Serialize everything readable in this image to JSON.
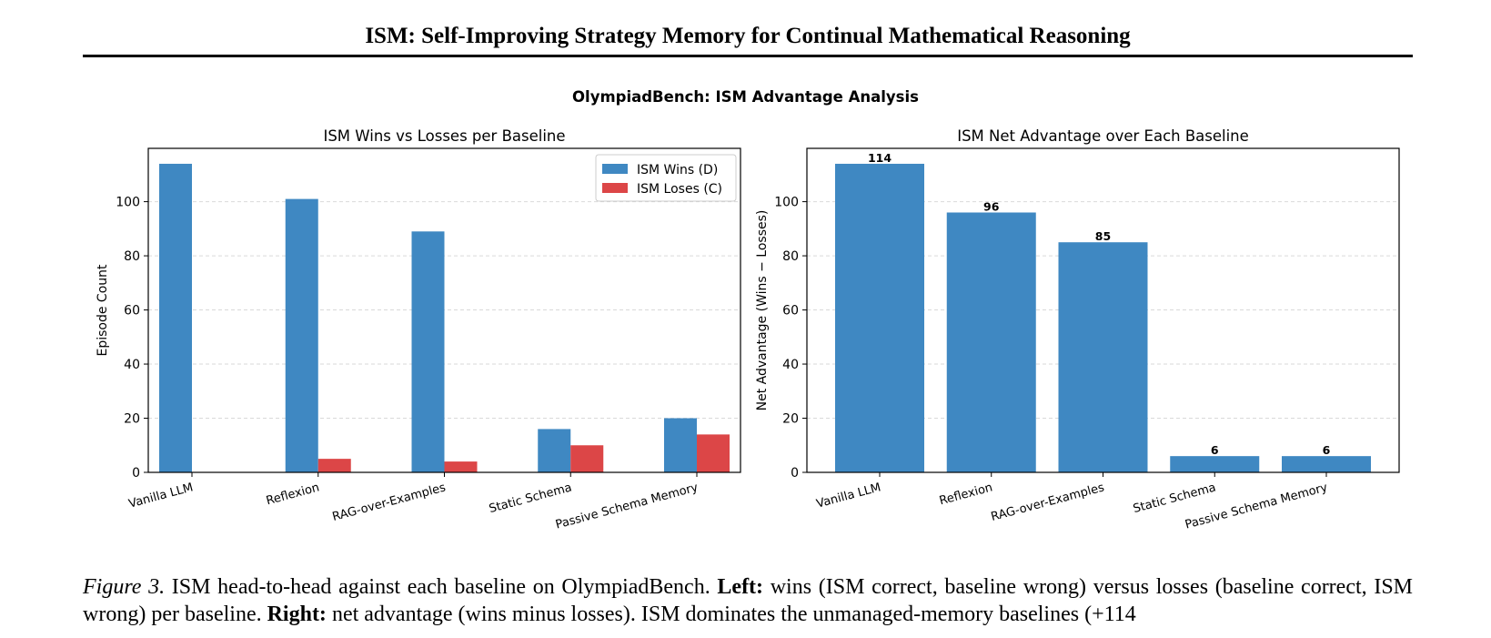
{
  "header": {
    "title": "ISM: Self-Improving Strategy Memory for Continual Mathematical Reasoning"
  },
  "figure": {
    "suptitle": "OlympiadBench: ISM Advantage Analysis"
  },
  "chart_data": [
    {
      "type": "bar",
      "title": "ISM Wins vs Losses per Baseline",
      "xlabel": "",
      "ylabel": "Episode Count",
      "categories": [
        "Vanilla LLM",
        "Reflexion",
        "RAG-over-Examples",
        "Static Schema",
        "Passive Schema Memory"
      ],
      "series": [
        {
          "name": "ISM Wins (D)",
          "values": [
            114,
            101,
            89,
            16,
            20
          ],
          "color": "#3f88c2"
        },
        {
          "name": "ISM Loses (C)",
          "values": [
            0,
            5,
            4,
            10,
            14
          ],
          "color": "#dc4647"
        }
      ],
      "yticks": [
        0,
        20,
        40,
        60,
        80,
        100
      ],
      "ylim": [
        0,
        119.7
      ],
      "grid": true,
      "legend_position": "top-right"
    },
    {
      "type": "bar",
      "title": "ISM Net Advantage over Each Baseline",
      "xlabel": "",
      "ylabel": "Net Advantage (Wins − Losses)",
      "categories": [
        "Vanilla LLM",
        "Reflexion",
        "RAG-over-Examples",
        "Static Schema",
        "Passive Schema Memory"
      ],
      "series": [
        {
          "name": "",
          "values": [
            114,
            96,
            85,
            6,
            6
          ],
          "color": "#3f88c2"
        }
      ],
      "data_labels": [
        "114",
        "96",
        "85",
        "6",
        "6"
      ],
      "yticks": [
        0,
        20,
        40,
        60,
        80,
        100
      ],
      "ylim": [
        0,
        119.7
      ],
      "grid": true
    }
  ],
  "caption": {
    "label": "Figure 3.",
    "part1": " ISM head-to-head against each baseline on OlympiadBench. ",
    "left_label": "Left:",
    "part2": " wins (ISM correct, baseline wrong) versus losses (baseline correct, ISM wrong) per baseline. ",
    "right_label": "Right:",
    "part3": " net advantage (wins minus losses). ISM dominates the unmanaged-memory baselines (+114"
  }
}
